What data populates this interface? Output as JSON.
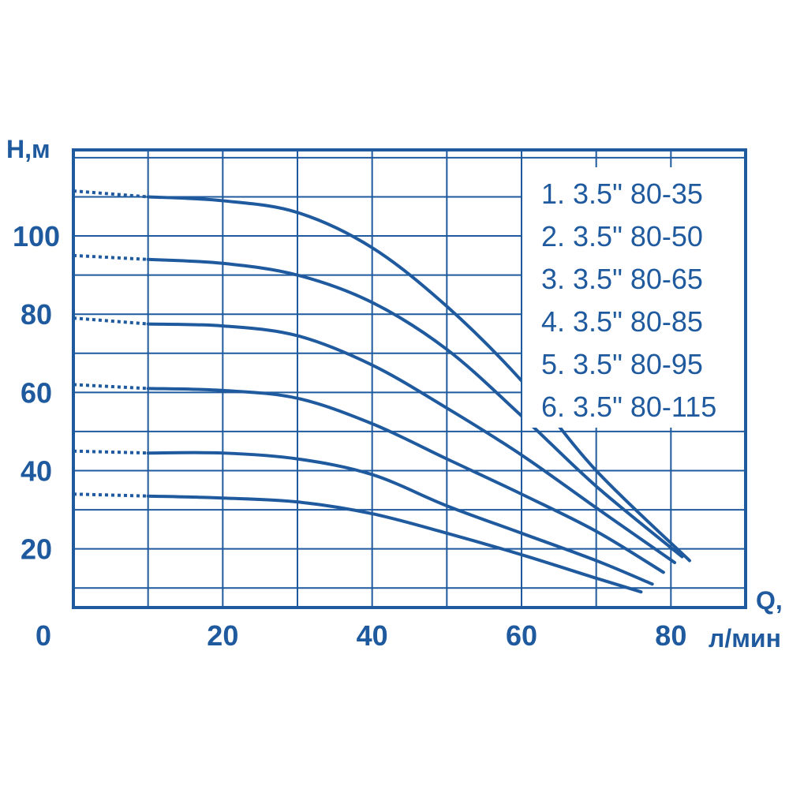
{
  "chart_data": {
    "type": "line",
    "title": "",
    "xlabel": "Q, л/мин",
    "xlabel_line1": "Q,",
    "xlabel_line2": "л/мин",
    "ylabel": "H,м",
    "xlim": [
      0,
      90
    ],
    "ylim": [
      5,
      122
    ],
    "grid": true,
    "x_ticks": [
      "0",
      "20",
      "40",
      "60",
      "80"
    ],
    "y_ticks": [
      "20",
      "40",
      "60",
      "80",
      "100"
    ],
    "line_color": "#1f5a9e",
    "legend_position": "top-right",
    "series": [
      {
        "name": "1. 3.5\" 80-35",
        "dotted": [
          [
            0,
            34
          ],
          [
            10,
            33.5
          ]
        ],
        "points": [
          [
            10,
            33.5
          ],
          [
            20,
            33
          ],
          [
            30,
            32
          ],
          [
            40,
            29
          ],
          [
            50,
            24
          ],
          [
            60,
            18.5
          ],
          [
            70,
            12.5
          ],
          [
            76,
            9
          ]
        ]
      },
      {
        "name": "2. 3.5\" 80-50",
        "dotted": [
          [
            0,
            45
          ],
          [
            10,
            44.5
          ]
        ],
        "points": [
          [
            10,
            44.5
          ],
          [
            20,
            44.5
          ],
          [
            30,
            43
          ],
          [
            40,
            39
          ],
          [
            50,
            31
          ],
          [
            60,
            24
          ],
          [
            70,
            17
          ],
          [
            77.5,
            11
          ]
        ]
      },
      {
        "name": "3. 3.5\" 80-65",
        "dotted": [
          [
            0,
            62
          ],
          [
            10,
            61
          ]
        ],
        "points": [
          [
            10,
            61
          ],
          [
            20,
            60.5
          ],
          [
            30,
            58.5
          ],
          [
            40,
            52
          ],
          [
            50,
            43
          ],
          [
            60,
            34
          ],
          [
            70,
            24.5
          ],
          [
            79,
            14
          ]
        ]
      },
      {
        "name": "4. 3.5\" 80-85",
        "dotted": [
          [
            0,
            79
          ],
          [
            10,
            77.5
          ]
        ],
        "points": [
          [
            10,
            77.5
          ],
          [
            20,
            77
          ],
          [
            30,
            74.5
          ],
          [
            40,
            67
          ],
          [
            50,
            56
          ],
          [
            60,
            44
          ],
          [
            70,
            30.5
          ],
          [
            80.5,
            16.5
          ]
        ]
      },
      {
        "name": "5. 3.5\" 80-95",
        "dotted": [
          [
            0,
            95
          ],
          [
            10,
            94
          ]
        ],
        "points": [
          [
            10,
            94
          ],
          [
            20,
            93
          ],
          [
            30,
            90
          ],
          [
            40,
            83
          ],
          [
            50,
            71
          ],
          [
            60,
            54
          ],
          [
            70,
            36
          ],
          [
            81.5,
            18
          ]
        ]
      },
      {
        "name": "6. 3.5\" 80-115",
        "dotted": [
          [
            0,
            111.5
          ],
          [
            10,
            110
          ]
        ],
        "points": [
          [
            10,
            110
          ],
          [
            20,
            109
          ],
          [
            30,
            106
          ],
          [
            40,
            97
          ],
          [
            50,
            82
          ],
          [
            60,
            63
          ],
          [
            70,
            40
          ],
          [
            82.5,
            17
          ]
        ]
      }
    ]
  }
}
